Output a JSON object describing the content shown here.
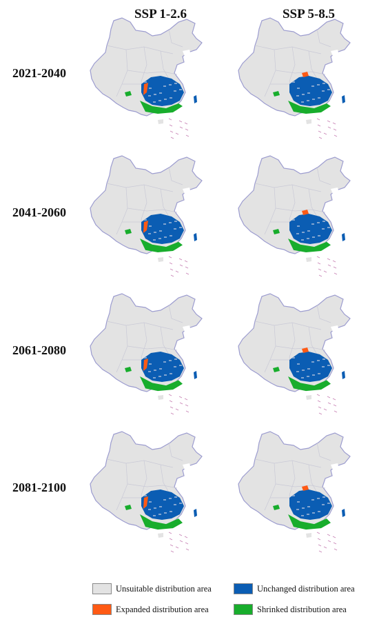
{
  "columns": [
    "SSP 1-2.6",
    "SSP 5-8.5"
  ],
  "rows": [
    "2021-2040",
    "2041-2060",
    "2061-2080",
    "2081-2100"
  ],
  "legend": {
    "unsuitable": {
      "label": "Unsuitable distribution area",
      "color": "#e3e3e3"
    },
    "unchanged": {
      "label": "Unchanged distribution area",
      "color": "#0b5db3"
    },
    "expanded": {
      "label": "Expanded distribution area",
      "color": "#ff5a14"
    },
    "shrinked": {
      "label": "Shrinked distribution area",
      "color": "#18ad2c"
    }
  },
  "border_color": "#9c9ccf"
}
